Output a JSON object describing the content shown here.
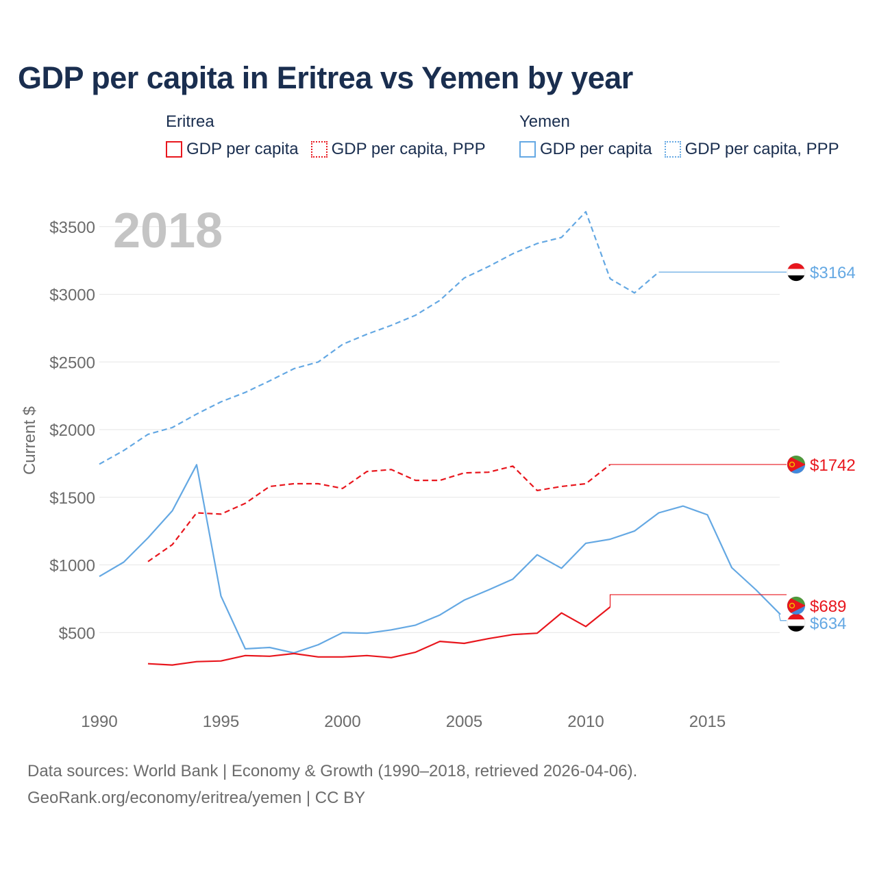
{
  "title": "GDP per capita in Eritrea vs Yemen by year",
  "legend": {
    "eritrea": {
      "country": "Eritrea",
      "gdp": "GDP per capita",
      "ppp": "GDP per capita, PPP"
    },
    "yemen": {
      "country": "Yemen",
      "gdp": "GDP per capita",
      "ppp": "GDP per capita, PPP"
    }
  },
  "colors": {
    "eritrea": "#e8161d",
    "yemen": "#64a8e3",
    "text": "#1a2e4f",
    "muted": "#6b6b6b",
    "grid": "#e6e6e6"
  },
  "footer": {
    "line1": "Data sources: World Bank | Economy & Growth (1990–2018, retrieved 2026-04-06).",
    "line2": "GeoRank.org/economy/eritrea/yemen | CC BY"
  },
  "chart_data": {
    "type": "line",
    "year_label": "2018",
    "ylabel": "Current $",
    "xlim": [
      1990,
      2018
    ],
    "ylim": [
      0,
      3650
    ],
    "yticks": [
      500,
      1000,
      1500,
      2000,
      2500,
      3000,
      3500
    ],
    "ytick_labels": [
      "$500",
      "$1000",
      "$1500",
      "$2000",
      "$2500",
      "$3000",
      "$3500"
    ],
    "xticks": [
      1990,
      1995,
      2000,
      2005,
      2010,
      2015
    ],
    "xtick_labels": [
      "1990",
      "1995",
      "2000",
      "2005",
      "2010",
      "2015"
    ],
    "series": [
      {
        "name": "Yemen GDP per capita, PPP",
        "country": "yemen",
        "style": "dashed",
        "x": [
          1990,
          1991,
          1992,
          1993,
          1994,
          1995,
          1996,
          1997,
          1998,
          1999,
          2000,
          2001,
          2002,
          2003,
          2004,
          2005,
          2006,
          2007,
          2008,
          2009,
          2010,
          2011,
          2012,
          2013
        ],
        "values": [
          1745,
          1845,
          1965,
          2015,
          2115,
          2205,
          2275,
          2360,
          2450,
          2500,
          2630,
          2705,
          2770,
          2845,
          2955,
          3120,
          3205,
          3300,
          3375,
          3420,
          3610,
          3115,
          3010,
          3164
        ],
        "end_value": 3164,
        "end_label": "$3164"
      },
      {
        "name": "Eritrea GDP per capita, PPP",
        "country": "eritrea",
        "style": "dashed",
        "x": [
          1992,
          1993,
          1994,
          1995,
          1996,
          1997,
          1998,
          1999,
          2000,
          2001,
          2002,
          2003,
          2004,
          2005,
          2006,
          2007,
          2008,
          2009,
          2010,
          2011
        ],
        "values": [
          1025,
          1150,
          1385,
          1375,
          1455,
          1580,
          1600,
          1600,
          1565,
          1690,
          1705,
          1625,
          1625,
          1680,
          1685,
          1730,
          1550,
          1580,
          1600,
          1742
        ],
        "end_value": 1742,
        "end_label": "$1742"
      },
      {
        "name": "Yemen GDP per capita",
        "country": "yemen",
        "style": "solid",
        "x": [
          1990,
          1991,
          1992,
          1993,
          1994,
          1995,
          1996,
          1997,
          1998,
          1999,
          2000,
          2001,
          2002,
          2003,
          2004,
          2005,
          2006,
          2007,
          2008,
          2009,
          2010,
          2011,
          2012,
          2013,
          2014,
          2015,
          2016,
          2017,
          2018
        ],
        "values": [
          915,
          1020,
          1200,
          1400,
          1740,
          770,
          380,
          390,
          350,
          410,
          500,
          495,
          520,
          555,
          630,
          740,
          815,
          895,
          1075,
          975,
          1160,
          1190,
          1250,
          1385,
          1435,
          1370,
          980,
          815,
          634
        ],
        "end_value": 634,
        "end_label": "$634"
      },
      {
        "name": "Eritrea GDP per capita",
        "country": "eritrea",
        "style": "solid",
        "x": [
          1992,
          1993,
          1994,
          1995,
          1996,
          1997,
          1998,
          1999,
          2000,
          2001,
          2002,
          2003,
          2004,
          2005,
          2006,
          2007,
          2008,
          2009,
          2010,
          2011
        ],
        "values": [
          270,
          260,
          285,
          290,
          330,
          325,
          345,
          320,
          320,
          330,
          315,
          355,
          435,
          420,
          455,
          485,
          495,
          645,
          545,
          689
        ],
        "end_value": 689,
        "end_label": "$689"
      }
    ]
  }
}
